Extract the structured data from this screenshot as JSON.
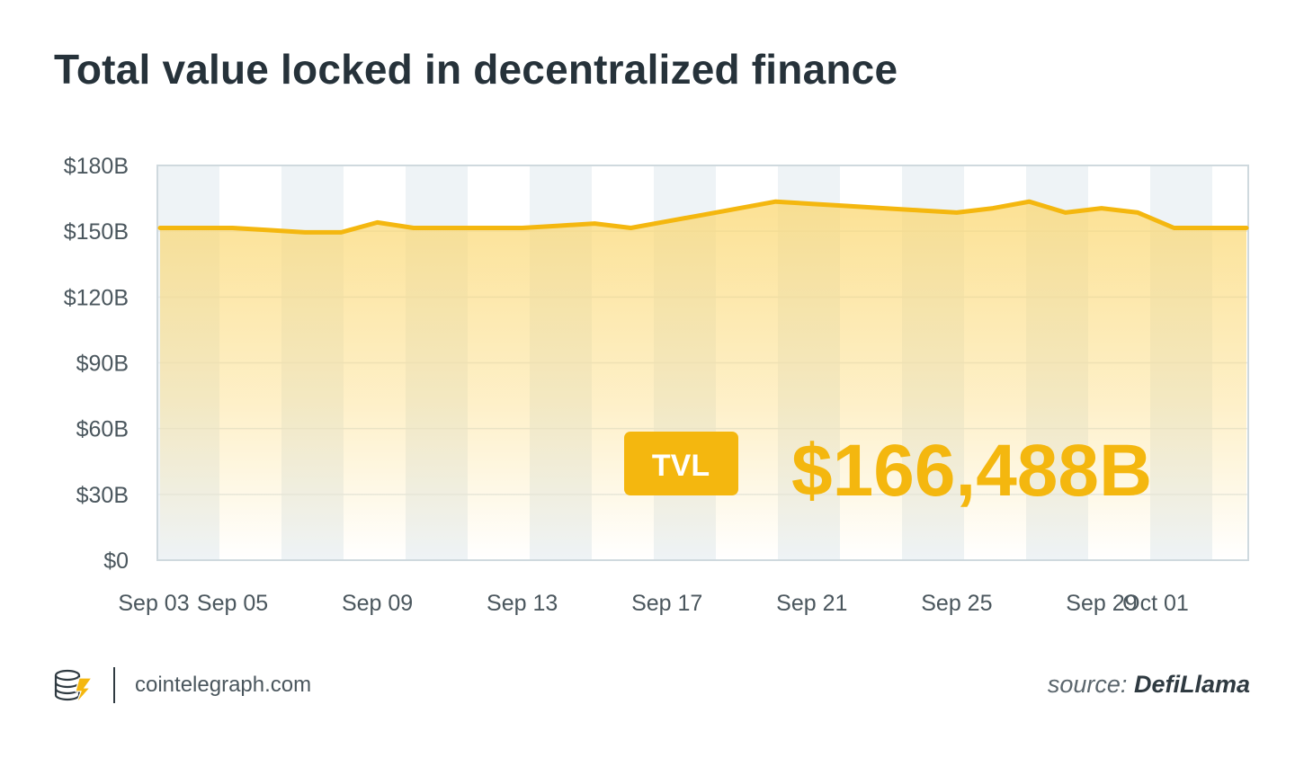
{
  "title": "Total value locked in decentralized finance",
  "footer": {
    "site": "cointelegraph.com",
    "source_prefix": "source:",
    "source_name": "DefiLlama",
    "logo_icon": "cointelegraph-logo-icon"
  },
  "colors": {
    "line": "#f4b70f",
    "fill": "#fbd66b",
    "badge_bg": "#f4b70f",
    "badge_text": "#ffffff",
    "value_text": "#f4b70f",
    "title": "#26323a",
    "band": "#eef3f6",
    "axis": "#cfd9de"
  },
  "chart_data": {
    "type": "area",
    "title": "Total value locked in decentralized finance",
    "xlabel": "",
    "ylabel": "",
    "ylim": [
      0,
      180
    ],
    "yticks": [
      0,
      30,
      60,
      90,
      120,
      150,
      180
    ],
    "ytick_labels": [
      "$0",
      "$30B",
      "$60B",
      "$90B",
      "$120B",
      "$150B",
      "$180B"
    ],
    "xtick_labels": [
      "Sep 03",
      "Sep 05",
      "Sep 09",
      "Sep 13",
      "Sep 17",
      "Sep 21",
      "Sep 25",
      "Sep 29",
      "Oct 01"
    ],
    "grid": true,
    "series": [
      {
        "x": [
          "Sep 03",
          "Sep 04",
          "Sep 05",
          "Sep 06",
          "Sep 07",
          "Sep 08",
          "Sep 09",
          "Sep 10",
          "Sep 11",
          "Sep 12",
          "Sep 13",
          "Sep 14",
          "Sep 15",
          "Sep 16",
          "Sep 17",
          "Sep 18",
          "Sep 19",
          "Sep 20",
          "Sep 21",
          "Sep 22",
          "Sep 23",
          "Sep 24",
          "Sep 25",
          "Sep 26",
          "Sep 27",
          "Sep 28",
          "Sep 29",
          "Sep 30",
          "Oct 01",
          "Oct 02",
          "Oct 03"
        ],
        "values": [
          151.5,
          151.5,
          151.5,
          150.5,
          149.5,
          149.5,
          154,
          151.5,
          151.5,
          151.5,
          151.5,
          152.5,
          153.5,
          151.5,
          154.5,
          157.5,
          160.5,
          163.5,
          162.5,
          161.5,
          160.5,
          159.5,
          158.5,
          160.5,
          163.5,
          158.5,
          160.5,
          158.5,
          151.5,
          151.5,
          151.5
        ]
      }
    ],
    "annotation": {
      "badge": "TVL",
      "value": "$166,488B"
    }
  }
}
